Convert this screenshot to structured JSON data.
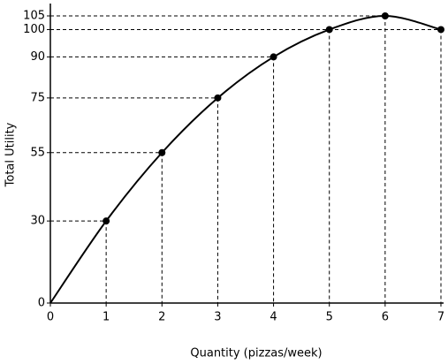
{
  "chart_data": {
    "type": "line",
    "x_label": "Quantity (pizzas/week)",
    "y_label": "Total Utility",
    "x": [
      0,
      1,
      2,
      3,
      4,
      5,
      6,
      7
    ],
    "series": [
      {
        "name": "Total Utility",
        "color": "#000000",
        "values": [
          0,
          30,
          55,
          75,
          90,
          100,
          105,
          100
        ]
      }
    ],
    "xlim": [
      0,
      7
    ],
    "ylim": [
      0,
      105
    ],
    "xticks": [
      0,
      1,
      2,
      3,
      4,
      5,
      6,
      7
    ],
    "yticks": [
      0,
      30,
      55,
      75,
      90,
      100,
      105
    ]
  }
}
